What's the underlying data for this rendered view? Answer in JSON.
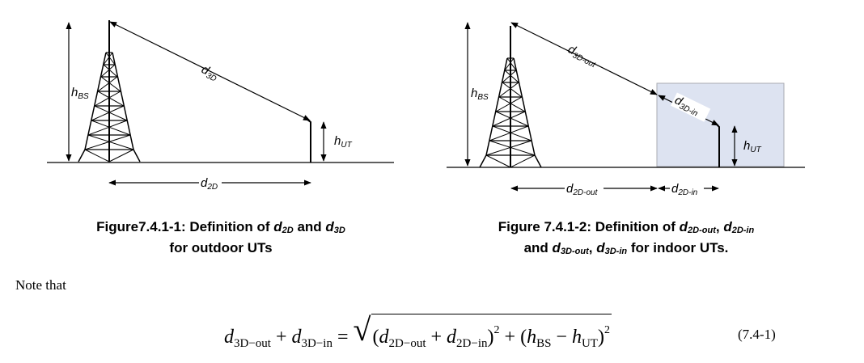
{
  "figure1": {
    "labels": {
      "d3D": {
        "main": "d",
        "sub": "3D"
      },
      "hBS": {
        "main": "h",
        "sub": "BS"
      },
      "hUT": {
        "main": "h",
        "sub": "UT"
      },
      "d2D": {
        "main": "d",
        "sub": "2D"
      }
    },
    "caption": {
      "line1_prefix": "Figure7.4.1-1: Definition of ",
      "d2D": {
        "main": "d",
        "sub": "2D"
      },
      "and": " and ",
      "d3D": {
        "main": "d",
        "sub": "3D"
      },
      "line2": "for outdoor UTs"
    }
  },
  "figure2": {
    "labels": {
      "d3D_out": {
        "main": "d",
        "sub": "3D-out"
      },
      "d3D_in": {
        "main": "d",
        "sub": "3D-in"
      },
      "hBS": {
        "main": "h",
        "sub": "BS"
      },
      "hUT": {
        "main": "h",
        "sub": "UT"
      },
      "d2D_out": {
        "main": "d",
        "sub": "2D-out"
      },
      "d2D_in": {
        "main": "d",
        "sub": "2D-in"
      }
    },
    "caption": {
      "line1_prefix": "Figure 7.4.1-2: Definition of ",
      "d2D_out": {
        "main": "d",
        "sub": "2D-out"
      },
      "comma": ", ",
      "d2D_in": {
        "main": "d",
        "sub": "2D-in"
      },
      "line2_prefix": "and ",
      "d3D_out": {
        "main": "d",
        "sub": "3D-out"
      },
      "comma2": ", ",
      "d3D_in": {
        "main": "d",
        "sub": "3D-in"
      },
      "line2_suffix": " for indoor UTs."
    }
  },
  "text": {
    "note": "Note that"
  },
  "equation": {
    "d": "d",
    "sub_3D_out": "3D−out",
    "plus": " + ",
    "sub_3D_in": "3D−in",
    "equals": " = ",
    "sqrt": "√",
    "open": "(",
    "close": ")",
    "sq": "2",
    "sub_2D_out": "2D−out",
    "sub_2D_in": "2D−in",
    "h": "h",
    "sub_BS": "BS",
    "minus": " − ",
    "sub_UT": "UT",
    "number": "(7.4-1)"
  },
  "colors": {
    "building_fill": "#dde3f1",
    "building_stroke": "#a9abb2"
  }
}
